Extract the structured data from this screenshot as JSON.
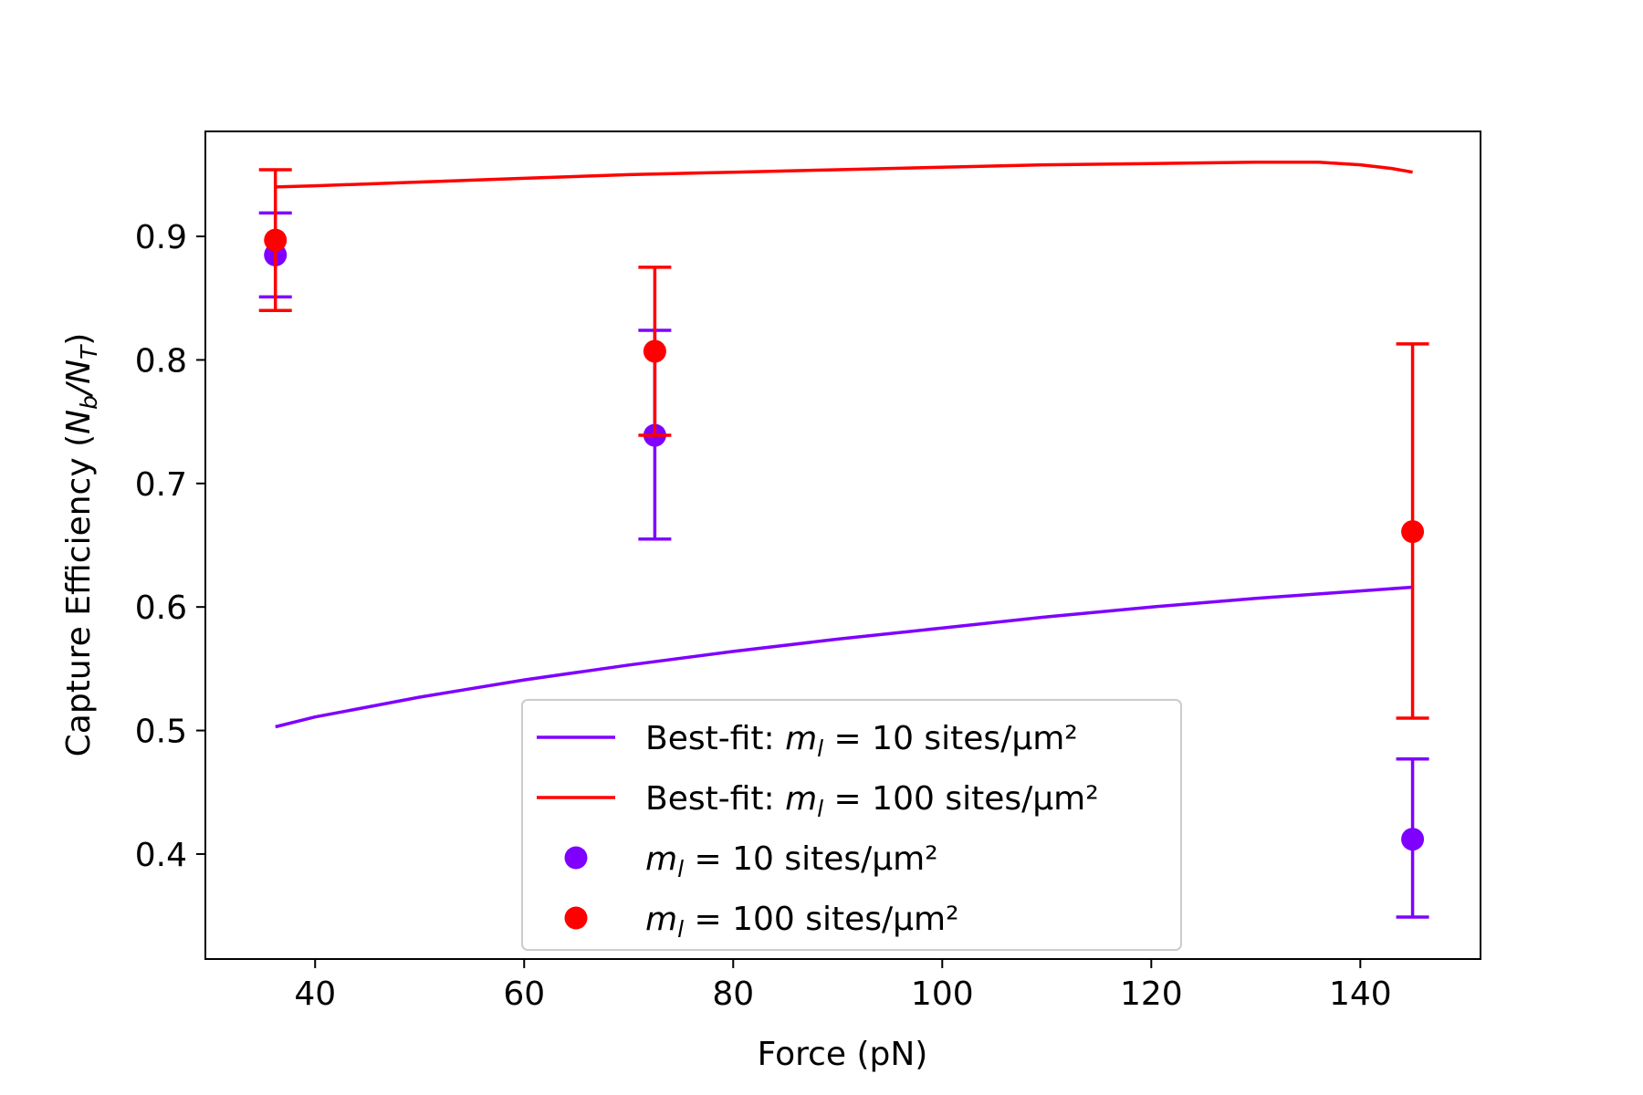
{
  "chart_data": {
    "type": "scatter",
    "xlabel": "Force (pN)",
    "ylabel_prefix": "Capture Efficiency (",
    "ylabel_math": "N",
    "ylabel_sub_b": "b",
    "ylabel_slash": "/N",
    "ylabel_sub_t": "T",
    "ylabel_suffix": ")",
    "xlim": [
      29.5,
      151.5
    ],
    "ylim": [
      0.315,
      0.985
    ],
    "xticks": [
      40,
      60,
      80,
      100,
      120,
      140
    ],
    "xtick_labels": [
      "40",
      "60",
      "80",
      "100",
      "120",
      "140"
    ],
    "yticks": [
      0.4,
      0.5,
      0.6,
      0.7,
      0.8,
      0.9
    ],
    "ytick_labels": [
      "0.4",
      "0.5",
      "0.6",
      "0.7",
      "0.8",
      "0.9"
    ],
    "grid": false,
    "legend_placement": "lower center",
    "colors": {
      "purple": "#7f00ff",
      "red": "#ff0000"
    },
    "series": [
      {
        "name": "Best-fit: m_l = 10 sites/µm²",
        "kind": "line",
        "color": "#7f00ff",
        "x": [
          36.2,
          40,
          50,
          60,
          70,
          80,
          90,
          100,
          110,
          120,
          130,
          140,
          145
        ],
        "y": [
          0.503,
          0.511,
          0.527,
          0.541,
          0.553,
          0.564,
          0.574,
          0.583,
          0.592,
          0.6,
          0.607,
          0.613,
          0.616
        ]
      },
      {
        "name": "Best-fit: m_l = 100 sites/µm²",
        "kind": "line",
        "color": "#ff0000",
        "x": [
          36.2,
          40,
          50,
          60,
          70,
          80,
          90,
          100,
          110,
          120,
          130,
          136,
          140,
          143,
          145
        ],
        "y": [
          0.94,
          0.941,
          0.944,
          0.947,
          0.95,
          0.952,
          0.954,
          0.956,
          0.958,
          0.959,
          0.96,
          0.96,
          0.958,
          0.955,
          0.952
        ]
      },
      {
        "name": "m_l = 10 sites/µm²",
        "kind": "points",
        "color": "#7f00ff",
        "x": [
          36.2,
          72.5,
          145
        ],
        "y": [
          0.885,
          0.739,
          0.412
        ],
        "err_low": [
          0.851,
          0.655,
          0.349
        ],
        "err_high": [
          0.919,
          0.824,
          0.477
        ]
      },
      {
        "name": "m_l = 100 sites/µm²",
        "kind": "points",
        "color": "#ff0000",
        "x": [
          36.2,
          72.5,
          145
        ],
        "y": [
          0.897,
          0.807,
          0.661
        ],
        "err_low": [
          0.84,
          0.739,
          0.51
        ],
        "err_high": [
          0.954,
          0.875,
          0.813
        ]
      }
    ],
    "legend": [
      {
        "kind": "line",
        "color": "#7f00ff",
        "prefix": "Best-fit: ",
        "m": "m",
        "sub": "l",
        "rest": " = 10 sites/µm²"
      },
      {
        "kind": "line",
        "color": "#ff0000",
        "prefix": "Best-fit: ",
        "m": "m",
        "sub": "l",
        "rest": " = 100 sites/µm²"
      },
      {
        "kind": "marker",
        "color": "#7f00ff",
        "prefix": "",
        "m": "m",
        "sub": "l",
        "rest": " = 10 sites/µm²"
      },
      {
        "kind": "marker",
        "color": "#ff0000",
        "prefix": "",
        "m": "m",
        "sub": "l",
        "rest": " = 100 sites/µm²"
      }
    ]
  }
}
